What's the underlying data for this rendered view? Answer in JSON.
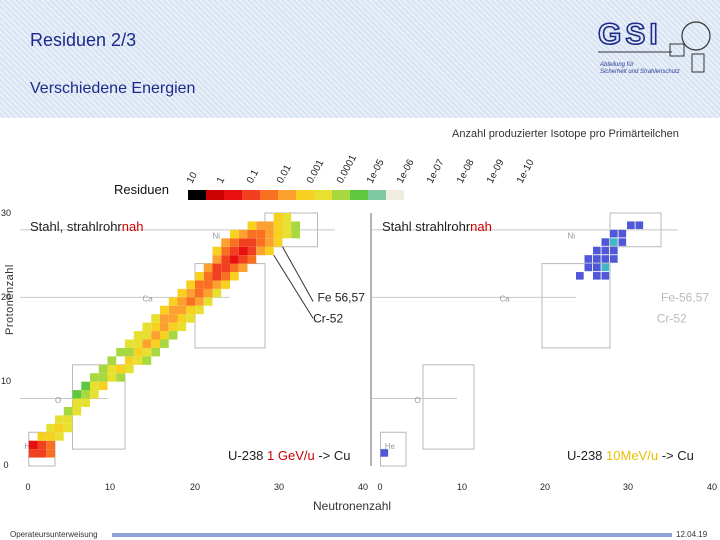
{
  "header": {
    "title": "Residuen 2/3",
    "subtitle": "Verschiedene Energien",
    "logo_text": "GSI",
    "dept_line1": "Abteilung für",
    "dept_line2": "Sicherheit und Strahlenschutz"
  },
  "footer": {
    "left_text": "Operateursunterweisung",
    "date": "12.04.19"
  },
  "colors": {
    "header_bg": "#dfe8f5",
    "title": "#1c2a8a",
    "energy_highlight_1": "#cc0000",
    "energy_highlight_2": "#e8c000"
  },
  "chart_data": {
    "type": "heatmap",
    "title": "Anzahl produzierter Isotope pro Primärteilchen",
    "colorbar_label": "Residuen",
    "colorbar_ticks": [
      "10",
      "1",
      "0.1",
      "0.01",
      "0.001",
      "0.0001",
      "1e-05",
      "1e-06",
      "1e-07",
      "1e-08",
      "1e-09",
      "1e-10"
    ],
    "colorbar_colors": [
      "#000000",
      "#cc0000",
      "#e81010",
      "#f04020",
      "#f87020",
      "#fca030",
      "#f8d020",
      "#e8e030",
      "#a8d840",
      "#60c840",
      "#80c8a0",
      "#f0ece0"
    ],
    "xlabel": "Neutronenzahl",
    "ylabel": "Protonenzahl",
    "x_ticks_panel1": [
      "0",
      "10",
      "20",
      "30"
    ],
    "x_ticks_panel2": [
      "40",
      "0",
      "10",
      "20",
      "30",
      "40"
    ],
    "y_ticks": [
      "30",
      "20",
      "10",
      "0"
    ],
    "xlim": [
      0,
      40
    ],
    "ylim": [
      0,
      30
    ],
    "element_labels": [
      "Ni",
      "Ca",
      "O",
      "He"
    ],
    "panels": [
      {
        "label_main": "Stahl, strahlrohr",
        "label_highlight": "nah",
        "annotations": [
          "Fe 56,57",
          "Cr-52"
        ],
        "beam": "U-238",
        "energy": "1 GeV/u",
        "arrow_target": "-> Cu",
        "cells": [
          [
            1,
            1,
            3
          ],
          [
            2,
            1,
            3
          ],
          [
            1,
            2,
            2
          ],
          [
            2,
            2,
            3
          ],
          [
            3,
            1,
            4
          ],
          [
            3,
            2,
            4
          ],
          [
            2,
            3,
            6
          ],
          [
            3,
            3,
            6
          ],
          [
            4,
            3,
            7
          ],
          [
            3,
            4,
            7
          ],
          [
            4,
            4,
            6
          ],
          [
            5,
            4,
            7
          ],
          [
            4,
            5,
            7
          ],
          [
            5,
            5,
            7
          ],
          [
            5,
            6,
            8
          ],
          [
            6,
            6,
            7
          ],
          [
            6,
            7,
            7
          ],
          [
            7,
            7,
            7
          ],
          [
            7,
            8,
            8
          ],
          [
            8,
            8,
            7
          ],
          [
            8,
            9,
            7
          ],
          [
            9,
            9,
            6
          ],
          [
            10,
            10,
            7
          ],
          [
            11,
            10,
            8
          ],
          [
            10,
            11,
            7
          ],
          [
            11,
            11,
            6
          ],
          [
            12,
            11,
            7
          ],
          [
            12,
            12,
            6
          ],
          [
            13,
            12,
            7
          ],
          [
            13,
            13,
            6
          ],
          [
            14,
            13,
            7
          ],
          [
            14,
            14,
            5
          ],
          [
            15,
            14,
            6
          ],
          [
            14,
            15,
            7
          ],
          [
            15,
            15,
            5
          ],
          [
            16,
            15,
            6
          ],
          [
            15,
            16,
            6
          ],
          [
            16,
            16,
            5
          ],
          [
            17,
            16,
            6
          ],
          [
            16,
            17,
            5
          ],
          [
            17,
            17,
            5
          ],
          [
            18,
            17,
            6
          ],
          [
            17,
            18,
            5
          ],
          [
            18,
            18,
            5
          ],
          [
            19,
            18,
            6
          ],
          [
            18,
            19,
            5
          ],
          [
            19,
            19,
            4
          ],
          [
            20,
            19,
            5
          ],
          [
            19,
            20,
            5
          ],
          [
            20,
            20,
            4
          ],
          [
            21,
            20,
            5
          ],
          [
            20,
            21,
            4
          ],
          [
            21,
            21,
            4
          ],
          [
            22,
            21,
            5
          ],
          [
            21,
            22,
            4
          ],
          [
            22,
            22,
            3
          ],
          [
            23,
            22,
            4
          ],
          [
            22,
            23,
            3
          ],
          [
            23,
            23,
            3
          ],
          [
            24,
            23,
            4
          ],
          [
            23,
            24,
            3
          ],
          [
            24,
            24,
            2
          ],
          [
            25,
            24,
            3
          ],
          [
            24,
            25,
            3
          ],
          [
            25,
            25,
            2
          ],
          [
            26,
            25,
            3
          ],
          [
            25,
            26,
            3
          ],
          [
            26,
            26,
            3
          ],
          [
            27,
            26,
            4
          ],
          [
            26,
            27,
            4
          ],
          [
            27,
            27,
            4
          ],
          [
            28,
            27,
            5
          ],
          [
            27,
            28,
            5
          ],
          [
            28,
            28,
            5
          ],
          [
            29,
            28,
            6
          ],
          [
            29,
            29,
            6
          ],
          [
            30,
            28,
            7
          ],
          [
            30,
            29,
            7
          ],
          [
            31,
            28,
            8
          ],
          [
            28,
            26,
            5
          ],
          [
            29,
            26,
            6
          ],
          [
            29,
            27,
            6
          ],
          [
            30,
            27,
            7
          ],
          [
            31,
            27,
            8
          ],
          [
            24,
            26,
            4
          ],
          [
            23,
            25,
            4
          ],
          [
            22,
            24,
            5
          ],
          [
            21,
            23,
            5
          ],
          [
            20,
            22,
            6
          ],
          [
            19,
            21,
            6
          ],
          [
            18,
            20,
            6
          ],
          [
            17,
            19,
            6
          ],
          [
            16,
            18,
            6
          ],
          [
            15,
            17,
            7
          ],
          [
            14,
            16,
            7
          ],
          [
            13,
            15,
            7
          ],
          [
            12,
            14,
            7
          ],
          [
            11,
            13,
            8
          ],
          [
            10,
            12,
            8
          ],
          [
            9,
            11,
            8
          ],
          [
            8,
            10,
            8
          ],
          [
            9,
            10,
            8
          ],
          [
            7,
            9,
            9
          ],
          [
            6,
            8,
            9
          ],
          [
            13,
            14,
            7
          ],
          [
            12,
            13,
            8
          ],
          [
            26,
            24,
            4
          ],
          [
            27,
            25,
            5
          ],
          [
            28,
            25,
            6
          ],
          [
            25,
            23,
            5
          ],
          [
            24,
            22,
            6
          ],
          [
            23,
            21,
            6
          ],
          [
            22,
            20,
            7
          ],
          [
            21,
            19,
            7
          ],
          [
            20,
            18,
            7
          ],
          [
            19,
            17,
            7
          ],
          [
            18,
            16,
            7
          ],
          [
            17,
            15,
            8
          ],
          [
            16,
            14,
            8
          ],
          [
            15,
            13,
            8
          ],
          [
            14,
            12,
            8
          ],
          [
            26,
            28,
            6
          ],
          [
            25,
            27,
            5
          ],
          [
            24,
            27,
            6
          ],
          [
            23,
            26,
            5
          ],
          [
            22,
            25,
            6
          ]
        ]
      },
      {
        "label_main": "Stahl strahlrohr",
        "label_highlight": "nah",
        "annotations": [
          "Fe-56,57",
          "Cr-52"
        ],
        "beam": "U-238",
        "energy": "10MeV/u",
        "arrow_target": "-> Cu",
        "cells": [
          [
            30,
            28,
            10
          ],
          [
            28,
            27,
            10
          ],
          [
            29,
            27,
            11
          ],
          [
            27,
            26,
            10
          ],
          [
            31,
            28,
            10
          ],
          [
            29,
            26,
            10
          ],
          [
            28,
            26,
            9
          ],
          [
            27,
            25,
            10
          ],
          [
            26,
            25,
            11
          ],
          [
            28,
            25,
            10
          ],
          [
            26,
            24,
            10
          ],
          [
            27,
            24,
            10
          ],
          [
            25,
            24,
            10
          ],
          [
            26,
            23,
            10
          ],
          [
            27,
            23,
            9
          ],
          [
            25,
            23,
            11
          ],
          [
            24,
            22,
            10
          ],
          [
            26,
            22,
            10
          ],
          [
            27,
            22,
            11
          ],
          [
            28,
            24,
            10
          ],
          [
            1,
            1,
            10
          ]
        ]
      }
    ]
  }
}
